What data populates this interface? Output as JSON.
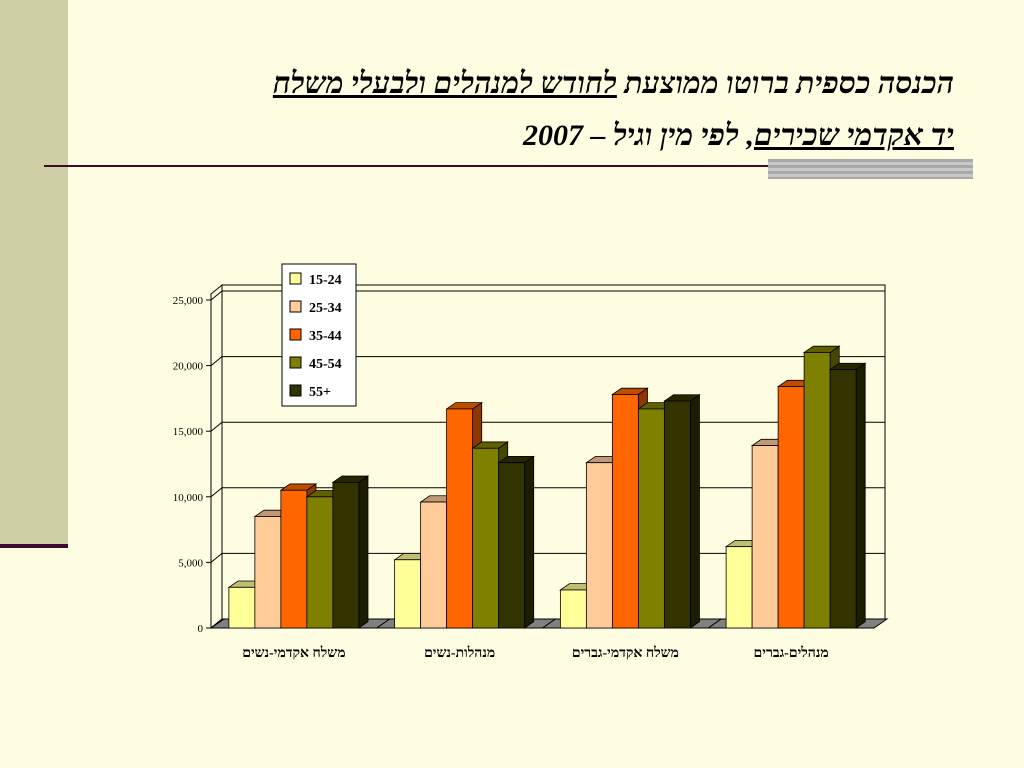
{
  "slide": {
    "title_line1_plain": "הכנסה כספית ברוטו ממוצעת ",
    "title_line1_underlined": "לחודש למנהלים ולבעלי משלח",
    "title_line2_underlined": "יד אקדמי שכירים",
    "title_line2_plain": ", לפי מין וגיל – 2007"
  },
  "colors": {
    "background": "#FFFDE1",
    "sidebar": "#CFCFA6",
    "rule": "#3C0A2E"
  },
  "chart_data": {
    "type": "bar",
    "title": "",
    "xlabel": "",
    "ylabel": "",
    "ylim": [
      0,
      25000
    ],
    "yticks": [
      0,
      5000,
      10000,
      15000,
      20000,
      25000
    ],
    "ytick_labels": [
      "0",
      "5,000",
      "10,000",
      "15,000",
      "20,000",
      "25,000"
    ],
    "grid": true,
    "legend_placement": "top-center",
    "categories": [
      "משלח אקדמי-נשים",
      "מנהלות-נשים",
      "משלח אקדמי-גברים",
      "מנהלים-גברים"
    ],
    "series": [
      {
        "name": "15-24",
        "color": "#FFFF99",
        "values": [
          3100,
          5200,
          2900,
          6200
        ]
      },
      {
        "name": "25-34",
        "color": "#FFCC99",
        "values": [
          8500,
          9600,
          12600,
          13900
        ]
      },
      {
        "name": "35-44",
        "color": "#FF6600",
        "values": [
          10500,
          16700,
          17800,
          18400
        ]
      },
      {
        "name": "45-54",
        "color": "#808000",
        "values": [
          10000,
          13700,
          16700,
          21000
        ]
      },
      {
        "name": "55+",
        "color": "#333300",
        "values": [
          11100,
          12600,
          17300,
          19700
        ]
      }
    ]
  }
}
